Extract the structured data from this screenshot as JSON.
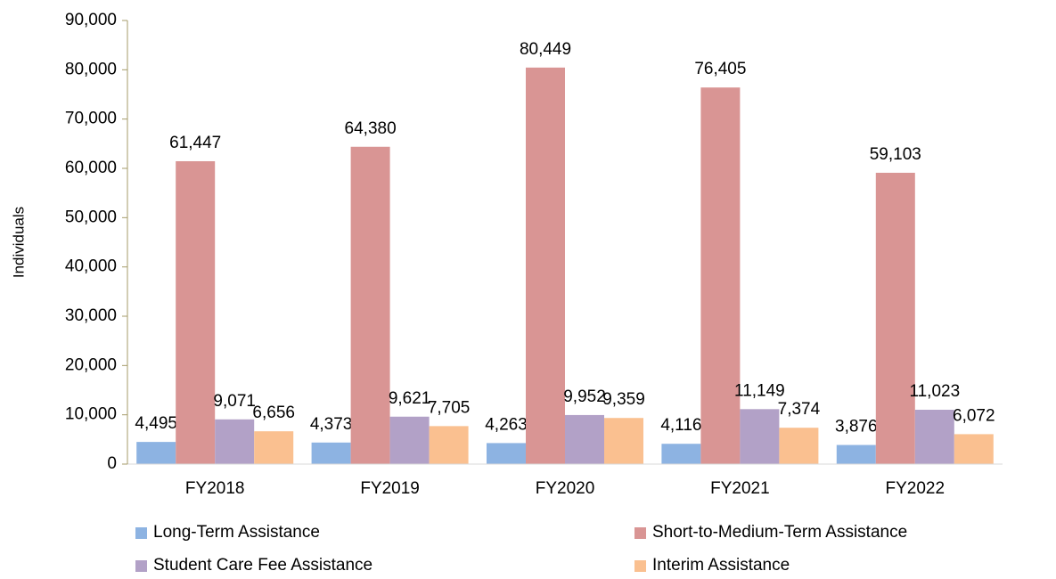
{
  "chart_data": {
    "type": "bar",
    "y_label": "Individuals",
    "categories": [
      "FY2018",
      "FY2019",
      "FY2020",
      "FY2021",
      "FY2022"
    ],
    "series": [
      {
        "name": "Long-Term Assistance",
        "color": "#8db3e2",
        "values": [
          4495,
          4373,
          4263,
          4116,
          3876
        ],
        "value_labels": [
          "4,495",
          "4,373",
          "4,263",
          "4,116",
          "3,876"
        ]
      },
      {
        "name": "Short-to-Medium-Term Assistance",
        "color": "#d99594",
        "values": [
          61447,
          64380,
          80449,
          76405,
          59103
        ],
        "value_labels": [
          "61,447",
          "64,380",
          "80,449",
          "76,405",
          "59,103"
        ]
      },
      {
        "name": "Student Care Fee Assistance",
        "color": "#b2a1c7",
        "values": [
          9071,
          9621,
          9952,
          11149,
          11023
        ],
        "value_labels": [
          "9,071",
          "9,621",
          "9,952",
          "11,149",
          "11,023"
        ]
      },
      {
        "name": "Interim Assistance",
        "color": "#fac090",
        "values": [
          6656,
          7705,
          9359,
          7374,
          6072
        ],
        "value_labels": [
          "6,656",
          "7,705",
          "9,359",
          "7,374",
          "6,072"
        ]
      }
    ],
    "ylim": [
      0,
      90000
    ],
    "yticks": [
      0,
      {
        "value": 10000,
        "label": "10,000"
      },
      {
        "value": 20000,
        "label": "20,000"
      },
      {
        "value": 30000,
        "label": "30,000"
      },
      {
        "value": 40000,
        "label": "40,000"
      },
      {
        "value": 50000,
        "label": "50,000"
      },
      {
        "value": 60000,
        "label": "60,000"
      },
      {
        "value": 70000,
        "label": "70,000"
      },
      {
        "value": 80000,
        "label": "80,000"
      },
      {
        "value": 90000,
        "label": "90,000"
      }
    ],
    "grid": false
  }
}
